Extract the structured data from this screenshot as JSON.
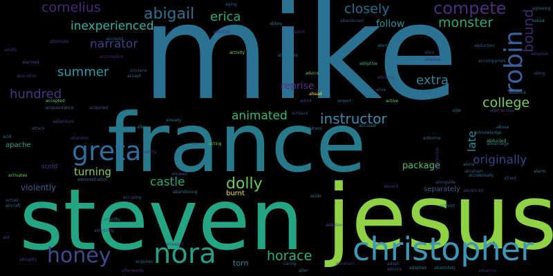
{
  "words": [
    {
      "id": "mike",
      "text": "mike",
      "color": "#2b7191"
    },
    {
      "id": "france",
      "text": "france",
      "color": "#267a8c"
    },
    {
      "id": "steven",
      "text": "steven",
      "color": "#24a684"
    },
    {
      "id": "jesus",
      "text": "jesus",
      "color": "#8fd345"
    },
    {
      "id": "christopher",
      "text": "christopher",
      "color": "#3c97b8"
    },
    {
      "id": "greta",
      "text": "greta",
      "color": "#2e6d9e"
    },
    {
      "id": "nora",
      "text": "nora",
      "color": "#27a08a"
    },
    {
      "id": "honey",
      "text": "honey",
      "color": "#3d4b8e"
    },
    {
      "id": "robin",
      "text": "robin",
      "color": "#3a5f9a"
    },
    {
      "id": "compete",
      "text": "compete",
      "color": "#4b2f7a"
    },
    {
      "id": "abigail",
      "text": "abigail",
      "color": "#2d718e"
    },
    {
      "id": "cornelius",
      "text": "cornelius",
      "color": "#482979"
    },
    {
      "id": "closely",
      "text": "closely",
      "color": "#276d8d"
    },
    {
      "id": "monster",
      "text": "monster",
      "color": "#29a87c"
    },
    {
      "id": "inexperienced",
      "text": "inexperienced",
      "color": "#33b2a3"
    },
    {
      "id": "erica",
      "text": "erica",
      "color": "#27ad81"
    },
    {
      "id": "narrator",
      "text": "narrator",
      "color": "#3f3f86"
    },
    {
      "id": "summer",
      "text": "summer",
      "color": "#2b98a8"
    },
    {
      "id": "hundred",
      "text": "hundred",
      "color": "#453882"
    },
    {
      "id": "extra",
      "text": "extra",
      "color": "#2e8296"
    },
    {
      "id": "college",
      "text": "college",
      "color": "#73d055"
    },
    {
      "id": "animated",
      "text": "animated",
      "color": "#35b779"
    },
    {
      "id": "instructor",
      "text": "instructor",
      "color": "#3a8ab0"
    },
    {
      "id": "dolly",
      "text": "dolly",
      "color": "#6ccd5a"
    },
    {
      "id": "castle",
      "text": "castle",
      "color": "#22a884"
    },
    {
      "id": "turning",
      "text": "turning",
      "color": "#84d44b"
    },
    {
      "id": "horace",
      "text": "horace",
      "color": "#2db27d"
    },
    {
      "id": "reprise",
      "text": "reprise",
      "color": "#5a2d84"
    },
    {
      "id": "follow",
      "text": "follow",
      "color": "#2e8a96"
    },
    {
      "id": "originally",
      "text": "originally",
      "color": "#31447f"
    },
    {
      "id": "late",
      "text": "late",
      "color": "#2a8a96"
    },
    {
      "id": "bound",
      "text": "bound",
      "color": "#3d2970"
    },
    {
      "id": "package",
      "text": "package",
      "color": "#4ac16d"
    },
    {
      "id": "violently",
      "text": "violently",
      "color": "#3b5a8f"
    },
    {
      "id": "apache",
      "text": "apache",
      "color": "#2aa87f"
    },
    {
      "id": "separately",
      "text": "separately",
      "color": "#34608d"
    },
    {
      "id": "torn",
      "text": "torn",
      "color": "#2a8b97"
    },
    {
      "id": "burnt",
      "text": "burnt",
      "color": "#fde725"
    },
    {
      "id": "scold",
      "text": "scold",
      "color": "#3b428b"
    },
    {
      "id": "aging",
      "text": "aging",
      "color": "#33638d"
    },
    {
      "id": "advice",
      "text": "advice",
      "color": "#6ccd5a"
    },
    {
      "id": "alliance",
      "text": "alliance",
      "color": "#482475"
    },
    {
      "id": "accused",
      "text": "accused",
      "color": "#2a7b8e"
    },
    {
      "id": "active",
      "text": "active",
      "color": "#74d055"
    },
    {
      "id": "adoptive",
      "text": "adoptive",
      "color": "#3fbc73"
    },
    {
      "id": "acquired",
      "text": "acquired",
      "color": "#38598c"
    },
    {
      "id": "accepted",
      "text": "accepted",
      "color": "#62cb5f"
    },
    {
      "id": "activist",
      "text": "activist",
      "color": "#2d708e"
    },
    {
      "id": "afraid",
      "text": "afraid",
      "color": "#3b528b"
    },
    {
      "id": "acquires",
      "text": "acquires",
      "color": "#2e6e8e"
    },
    {
      "id": "adopted",
      "text": "adopted",
      "color": "#46327e"
    },
    {
      "id": "abduction",
      "text": "abduction",
      "color": "#38598c"
    },
    {
      "id": "aide",
      "text": "aide",
      "color": "#2b748e"
    },
    {
      "id": "addition",
      "text": "addition",
      "color": "#3b528b"
    },
    {
      "id": "achieve",
      "text": "achieve",
      "color": "#3e4c8a"
    },
    {
      "id": "alter",
      "text": "alter",
      "color": "#2d708e"
    },
    {
      "id": "adopt",
      "text": "adopt",
      "color": "#3b528b"
    },
    {
      "id": "aside",
      "text": "aside",
      "color": "#2c728e"
    },
    {
      "id": "advance",
      "text": "advance",
      "color": "#472d7b"
    },
    {
      "id": "admitting",
      "text": "admitting",
      "color": "#3e4a89"
    },
    {
      "id": "admit",
      "text": "admit",
      "color": "#433e85"
    },
    {
      "id": "acting",
      "text": "acting",
      "color": "#6ece58"
    },
    {
      "id": "ahead",
      "text": "ahead",
      "color": "#fde725"
    },
    {
      "id": "absence",
      "text": "absence",
      "color": "#2d708e"
    },
    {
      "id": "accomplice",
      "text": "accomplice",
      "color": "#482878"
    },
    {
      "id": "adventure",
      "text": "adventure",
      "color": "#3e4a89"
    },
    {
      "id": "acquaintance",
      "text": "acquaintance",
      "color": "#31688e"
    },
    {
      "id": "acid",
      "text": "acid",
      "color": "#2c728e"
    },
    {
      "id": "attack",
      "text": "attack",
      "color": "#3b528b"
    },
    {
      "id": "abandon",
      "text": "abandon",
      "color": "#46337f"
    },
    {
      "id": "aircraft",
      "text": "aircraft",
      "color": "#2a788e"
    },
    {
      "id": "actual",
      "text": "actual",
      "color": "#3b528b"
    },
    {
      "id": "aid",
      "text": "aid",
      "color": "#3e4a89"
    },
    {
      "id": "abruptly",
      "text": "abruptly",
      "color": "#433e85"
    },
    {
      "id": "activates",
      "text": "activates",
      "color": "#6ece58"
    },
    {
      "id": "adoration",
      "text": "adoration",
      "color": "#472d7b"
    },
    {
      "id": "afterwards",
      "text": "afterwards",
      "color": "#46337f"
    },
    {
      "id": "acknowledge",
      "text": "acknowledge",
      "color": "#2a788e"
    },
    {
      "id": "advantage",
      "text": "advantage",
      "color": "#2c728e"
    },
    {
      "id": "abducted",
      "text": "abducted",
      "color": "#35b779"
    },
    {
      "id": "abuse",
      "text": "abuse",
      "color": "#2d708e"
    },
    {
      "id": "accompanies",
      "text": "accompanies",
      "color": "#31688e"
    },
    {
      "id": "alien",
      "text": "alien",
      "color": "#3e4a89"
    },
    {
      "id": "agent",
      "text": "agent",
      "color": "#482878"
    },
    {
      "id": "abandoned",
      "text": "abandoned",
      "color": "#3b528b"
    },
    {
      "id": "abbey",
      "text": "abbey",
      "color": "#2c728e"
    },
    {
      "id": "abortion",
      "text": "abortion",
      "color": "#472d7b"
    },
    {
      "id": "account",
      "text": "account",
      "color": "#31688e"
    },
    {
      "id": "alternate",
      "text": "alternate",
      "color": "#46337f"
    },
    {
      "id": "activity",
      "text": "activity",
      "color": "#8fd744"
    },
    {
      "id": "attraction",
      "text": "attraction",
      "color": "#2a788e"
    },
    {
      "id": "airplane",
      "text": "airplane",
      "color": "#3b528b"
    },
    {
      "id": "accept",
      "text": "accept",
      "color": "#2d708e"
    },
    {
      "id": "alive",
      "text": "alive",
      "color": "#38598c"
    },
    {
      "id": "allowing",
      "text": "allowing",
      "color": "#433e85"
    },
    {
      "id": "alley",
      "text": "alley",
      "color": "#2c728e"
    },
    {
      "id": "airport",
      "text": "airport",
      "color": "#31688e"
    },
    {
      "id": "already",
      "text": "already",
      "color": "#2d708e"
    },
    {
      "id": "ability",
      "text": "ability",
      "color": "#472d7b"
    },
    {
      "id": "allowed",
      "text": "allowed",
      "color": "#3e4a89"
    },
    {
      "id": "abandoning",
      "text": "abandoning",
      "color": "#2a788e"
    },
    {
      "id": "accusing",
      "text": "accusing",
      "color": "#3b528b"
    },
    {
      "id": "administration",
      "text": "administration",
      "color": "#31688e"
    },
    {
      "id": "afterlife",
      "text": "afterlife",
      "color": "#2c728e"
    },
    {
      "id": "arrested",
      "text": "arrested",
      "color": "#482878"
    },
    {
      "id": "aboard",
      "text": "aboard",
      "color": "#46337f"
    },
    {
      "id": "agreeing",
      "text": "agreeing",
      "color": "#2d708e"
    },
    {
      "id": "along",
      "text": "along",
      "color": "#3b528b"
    },
    {
      "id": "asked",
      "text": "asked",
      "color": "#2a788e"
    },
    {
      "id": "admire",
      "text": "admire",
      "color": "#3e4a89"
    },
    {
      "id": "address",
      "text": "address",
      "color": "#31688e"
    },
    {
      "id": "alongside",
      "text": "alongside",
      "color": "#38598c"
    },
    {
      "id": "aggressive",
      "text": "aggressive",
      "color": "#472d7b"
    },
    {
      "id": "alone",
      "text": "alone",
      "color": "#2c728e"
    },
    {
      "id": "abraham",
      "text": "abraham",
      "color": "#3b528b"
    },
    {
      "id": "accidentally",
      "text": "accidentally",
      "color": "#2d708e"
    },
    {
      "id": "advanced",
      "text": "advanced",
      "color": "#433e85"
    },
    {
      "id": "airborne",
      "text": "airborne",
      "color": "#31688e"
    },
    {
      "id": "alarm",
      "text": "alarm",
      "color": "#2a788e"
    },
    {
      "id": "alien-across",
      "text": "alien across",
      "color": "#3e4a89"
    },
    {
      "id": "alert",
      "text": "alert",
      "color": "#2c728e"
    },
    {
      "id": "adults",
      "text": "adults",
      "color": "#482878"
    },
    {
      "id": "alarmed",
      "text": "alarmed",
      "color": "#3b528b"
    },
    {
      "id": "abraham-ll",
      "text": "abraham",
      "color": "#46337f"
    },
    {
      "id": "absolutely",
      "text": "absolutely",
      "color": "#2d708e"
    },
    {
      "id": "adopted-2",
      "text": "adopted",
      "color": "#2a788e"
    },
    {
      "id": "caring",
      "text": "caring",
      "color": "#31688e"
    },
    {
      "id": "ai",
      "text": "ai",
      "color": "#3e4a89"
    }
  ]
}
